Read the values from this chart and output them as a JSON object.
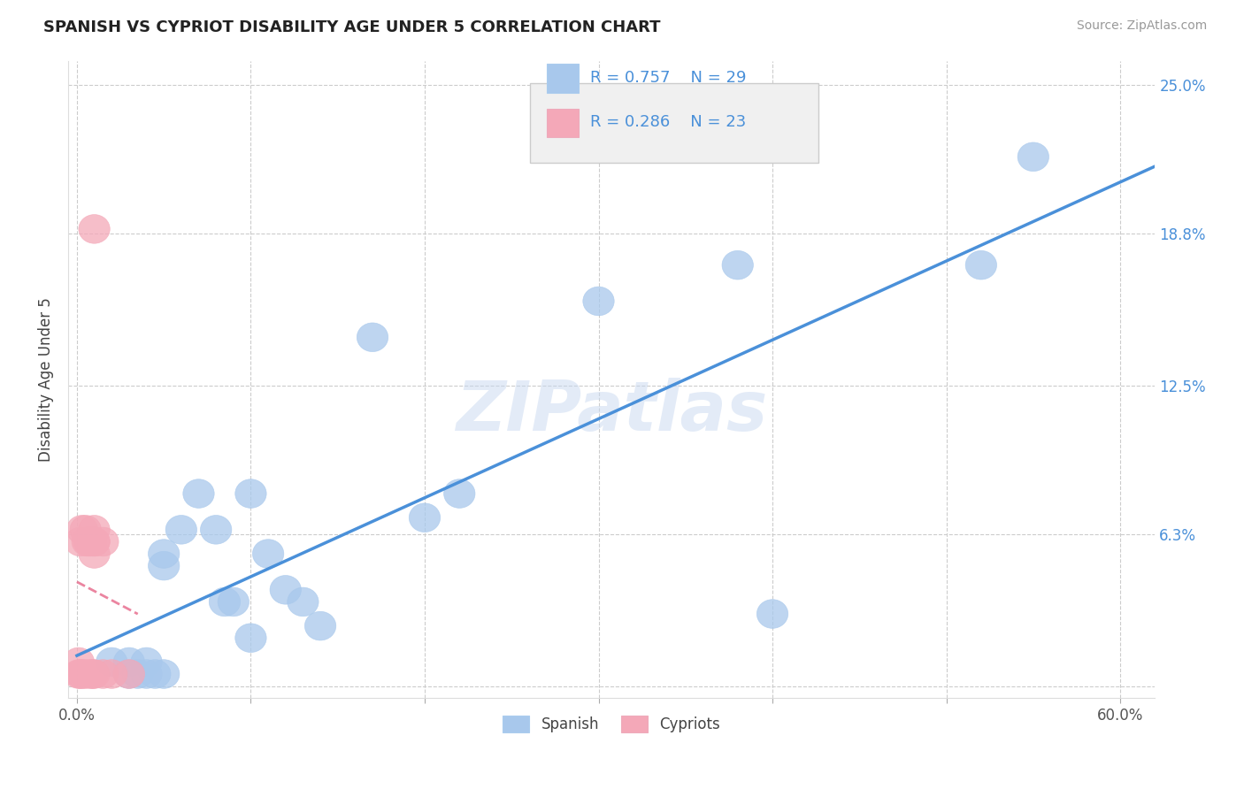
{
  "title": "SPANISH VS CYPRIOT DISABILITY AGE UNDER 5 CORRELATION CHART",
  "source": "Source: ZipAtlas.com",
  "ylabel": "Disability Age Under 5",
  "xlim": [
    -0.005,
    0.62
  ],
  "ylim": [
    -0.005,
    0.26
  ],
  "xticks": [
    0.0,
    0.1,
    0.2,
    0.3,
    0.4,
    0.5,
    0.6
  ],
  "xticklabels": [
    "0.0%",
    "",
    "",
    "",
    "",
    "",
    "60.0%"
  ],
  "ytick_values": [
    0.0,
    0.063,
    0.125,
    0.188,
    0.25
  ],
  "ytick_labels": [
    "",
    "6.3%",
    "12.5%",
    "18.8%",
    "25.0%"
  ],
  "spanish_r": 0.757,
  "spanish_n": 29,
  "cypriot_r": 0.286,
  "cypriot_n": 23,
  "spanish_color": "#A8C8EC",
  "cypriot_color": "#F4A8B8",
  "trendline_color": "#4A90D9",
  "cypriot_trendline_color": "#E87090",
  "watermark_color": "#C8D8F0",
  "spanish_x": [
    0.02,
    0.03,
    0.03,
    0.035,
    0.04,
    0.04,
    0.045,
    0.05,
    0.05,
    0.05,
    0.06,
    0.07,
    0.08,
    0.085,
    0.09,
    0.1,
    0.1,
    0.11,
    0.12,
    0.13,
    0.14,
    0.17,
    0.2,
    0.22,
    0.3,
    0.38,
    0.4,
    0.52,
    0.55
  ],
  "spanish_y": [
    0.01,
    0.005,
    0.01,
    0.005,
    0.005,
    0.01,
    0.005,
    0.005,
    0.05,
    0.055,
    0.065,
    0.08,
    0.065,
    0.035,
    0.035,
    0.02,
    0.08,
    0.055,
    0.04,
    0.035,
    0.025,
    0.145,
    0.07,
    0.08,
    0.16,
    0.175,
    0.03,
    0.175,
    0.22
  ],
  "cypriot_x": [
    0.001,
    0.001,
    0.002,
    0.002,
    0.003,
    0.003,
    0.005,
    0.005,
    0.006,
    0.007,
    0.008,
    0.008,
    0.009,
    0.01,
    0.01,
    0.01,
    0.01,
    0.01,
    0.01,
    0.015,
    0.015,
    0.02,
    0.03
  ],
  "cypriot_y": [
    0.005,
    0.01,
    0.005,
    0.06,
    0.005,
    0.065,
    0.005,
    0.065,
    0.06,
    0.06,
    0.005,
    0.06,
    0.005,
    0.005,
    0.055,
    0.06,
    0.06,
    0.065,
    0.19,
    0.005,
    0.06,
    0.005,
    0.005
  ]
}
